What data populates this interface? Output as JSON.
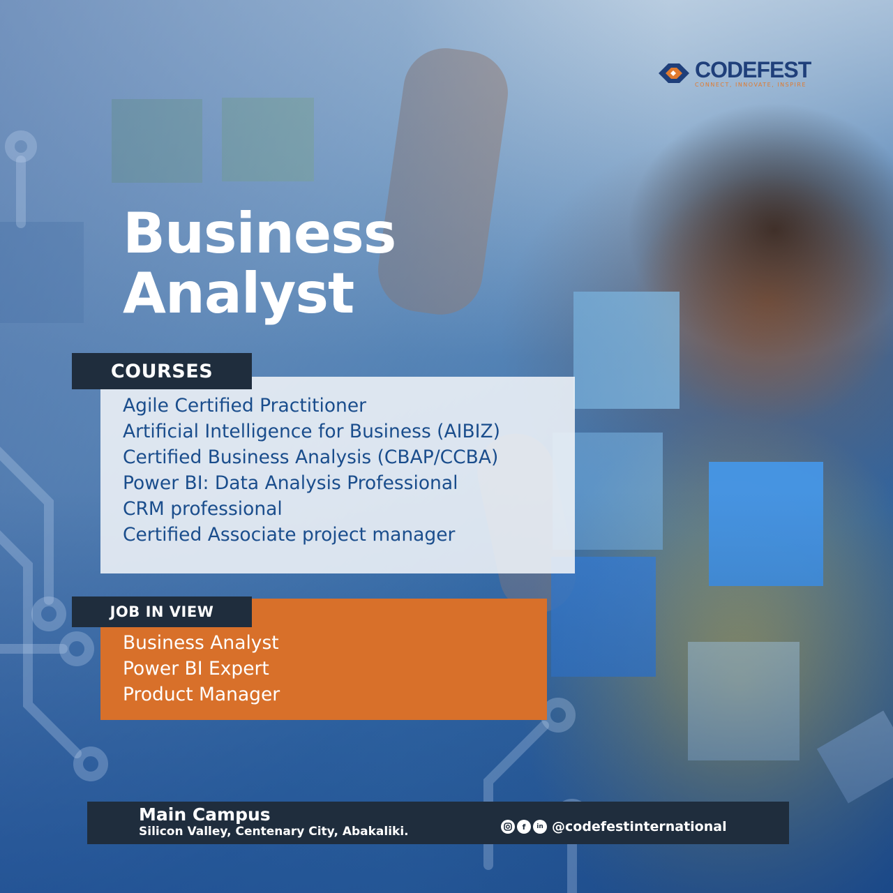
{
  "brand": {
    "name": "CODEFEST",
    "tagline": "CONNECT, INNOVATE, INSPIRE",
    "colors": {
      "navy": "#1f3f7a",
      "orange": "#e07a2e",
      "dark": "#1f2d3d",
      "blue_text": "#1a4d8c"
    }
  },
  "title": {
    "line1": "Business",
    "line2": "Analyst"
  },
  "courses": {
    "label": "COURSES",
    "items": [
      "Agile Certified Practitioner",
      "Artificial Intelligence for Business (AIBIZ)",
      "Certified Business Analysis (CBAP/CCBA)",
      "Power BI: Data Analysis Professional",
      "CRM professional",
      "Certified Associate project manager"
    ]
  },
  "jobs": {
    "label": "JOB IN VIEW",
    "items": [
      "Business Analyst",
      "Power BI Expert",
      "Product Manager"
    ]
  },
  "footer": {
    "campus_title": "Main Campus",
    "address": "Silicon Valley, Centenary City, Abakaliki.",
    "social_icons": [
      "instagram-icon",
      "facebook-icon",
      "linkedin-icon"
    ],
    "handle": "@codefestinternational"
  }
}
